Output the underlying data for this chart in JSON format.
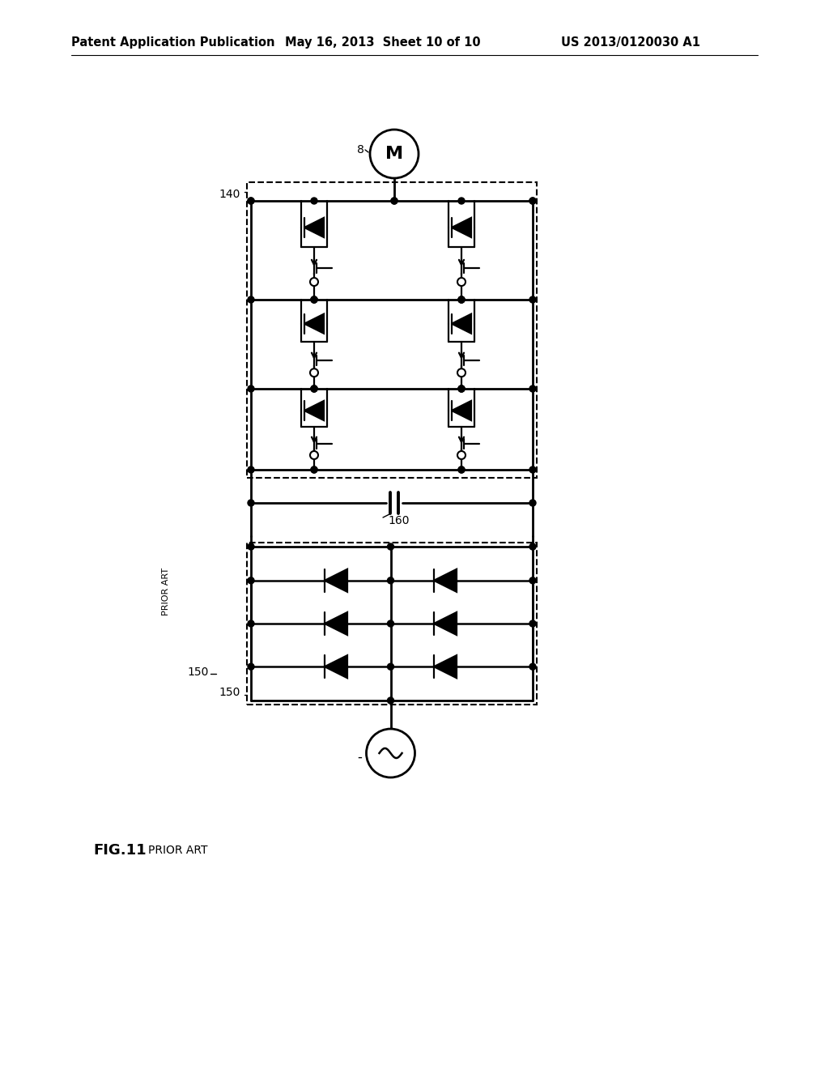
{
  "header_left": "Patent Application Publication",
  "header_center": "May 16, 2013  Sheet 10 of 10",
  "header_right": "US 2013/0120030 A1",
  "fig_label": "FIG.11",
  "prior_art": "PRIOR ART",
  "label_8": "8",
  "label_140": "140",
  "label_150": "150",
  "label_160": "160",
  "motor_label": "M",
  "ac_label": "∼",
  "bg_color": "#ffffff"
}
